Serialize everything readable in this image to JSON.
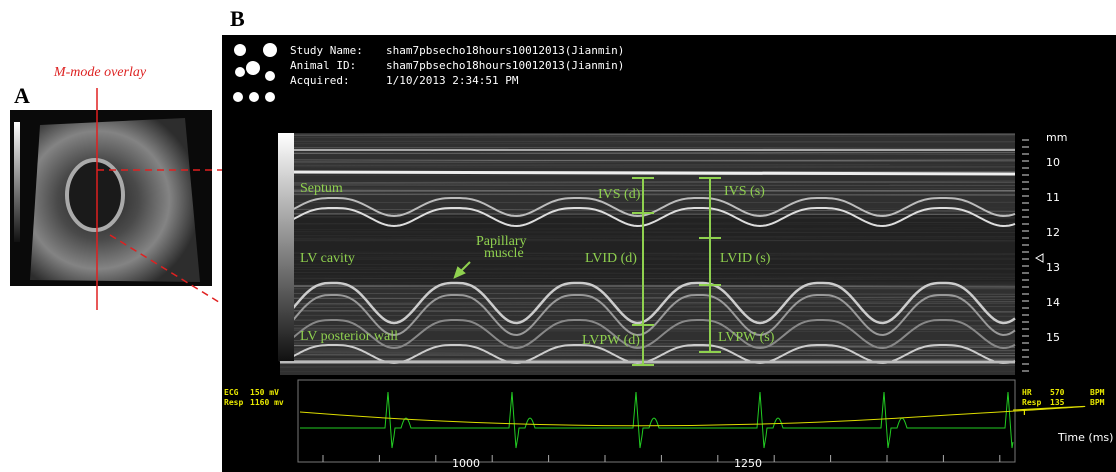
{
  "panel_a": {
    "label": "A",
    "overlay_label": "M-mode overlay"
  },
  "panel_b": {
    "label": "B",
    "study": [
      {
        "key": "Study Name:",
        "value": "sham7pbsecho18hours10012013(Jianmin)"
      },
      {
        "key": "Animal ID:",
        "value": "sham7pbsecho18hours10012013(Jianmin)"
      },
      {
        "key": "Acquired:",
        "value": "1/10/2013 2:34:51 PM"
      }
    ],
    "annotations": {
      "septum": "Septum",
      "lv_cavity": "LV cavity",
      "lv_posterior_wall": "LV posterior wall",
      "papillary": "Papillary",
      "muscle": "muscle",
      "ivs_d": "IVS (d)",
      "lvid_d": "LVID (d)",
      "lvpw_d": "LVPW (d)",
      "ivs_s": "IVS (s)",
      "lvid_s": "LVID (s)",
      "lvpw_s": "LVPW (s)"
    },
    "depth_scale": {
      "unit": "mm",
      "ticks": [
        10,
        11,
        12,
        13,
        14,
        15
      ]
    },
    "time_axis": {
      "ticks": [
        1000,
        1250
      ],
      "label": "Time (ms)"
    },
    "ecg": {
      "left": [
        {
          "name": "ECG",
          "value": "150 mV"
        },
        {
          "name": "Resp",
          "value": "1160 mv"
        }
      ],
      "right": [
        {
          "name": "HR",
          "value": "570",
          "unit": "BPM"
        },
        {
          "name": "Resp",
          "value": "135",
          "unit": "BPM"
        },
        {
          "name": "T"
        }
      ]
    }
  }
}
